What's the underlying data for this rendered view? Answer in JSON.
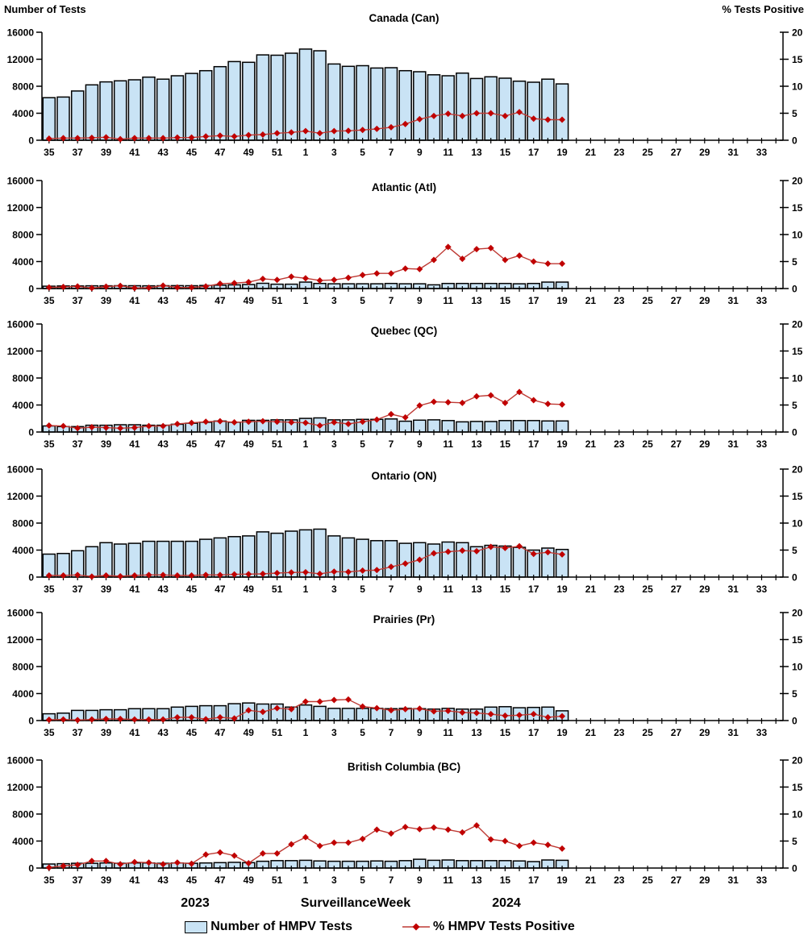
{
  "page": {
    "left_axis_title": "Number of Tests",
    "right_axis_title": "% Tests Positive",
    "x_axis_title": "Surveillance Week",
    "year_left": "2023",
    "year_right": "2024",
    "legend": {
      "bars": "Number of HMPV Tests",
      "line": "% HMPV Tests Positive"
    }
  },
  "axis": {
    "week_labels": [
      "35",
      "37",
      "39",
      "41",
      "43",
      "45",
      "47",
      "49",
      "51",
      "1",
      "3",
      "5",
      "7",
      "9",
      "11",
      "13",
      "15",
      "17",
      "19",
      "21",
      "23",
      "25",
      "27",
      "29",
      "31",
      "33"
    ],
    "weeks_total": 52,
    "left_ticks": [
      0,
      4000,
      8000,
      12000,
      16000
    ],
    "right_ticks": [
      0,
      5,
      10,
      15,
      20
    ]
  },
  "colors": {
    "bar_fill": "#C9E3F5",
    "bar_stroke": "#000000",
    "line": "#BE3A34",
    "marker": "#C00000",
    "axis": "#000000"
  },
  "chart_data": [
    {
      "type": "bar",
      "title": "Canada (Can)",
      "xlabel": "Surveillance Week",
      "ylabel_left": "Number of Tests",
      "ylabel_right": "% Tests Positive",
      "ylim_left": [
        0,
        16000
      ],
      "ylim_right": [
        0,
        20
      ],
      "weeks": [
        35,
        36,
        37,
        38,
        39,
        40,
        41,
        42,
        43,
        44,
        45,
        46,
        47,
        48,
        49,
        50,
        51,
        52,
        1,
        2,
        3,
        4,
        5,
        6,
        7,
        8,
        9,
        10,
        11,
        12,
        13,
        14,
        15,
        16,
        17,
        18,
        19
      ],
      "series": [
        {
          "name": "Number of HMPV Tests",
          "type": "bar",
          "axis": "left",
          "values": [
            6300,
            6400,
            7300,
            8200,
            8650,
            8800,
            8950,
            9350,
            9050,
            9550,
            9900,
            10300,
            10900,
            11650,
            11550,
            12650,
            12600,
            12900,
            13500,
            13250,
            11300,
            10950,
            11050,
            10700,
            10750,
            10300,
            10150,
            9700,
            9550,
            9950,
            9150,
            9400,
            9200,
            8750,
            8600,
            9050,
            8350
          ]
        },
        {
          "name": "% HMPV Tests Positive",
          "type": "line",
          "axis": "right",
          "values": [
            0.3,
            0.4,
            0.4,
            0.45,
            0.55,
            0.2,
            0.4,
            0.4,
            0.4,
            0.5,
            0.5,
            0.7,
            0.85,
            0.7,
            0.95,
            1.05,
            1.3,
            1.45,
            1.7,
            1.3,
            1.7,
            1.75,
            1.9,
            2.1,
            2.4,
            3.0,
            3.9,
            4.5,
            4.9,
            4.5,
            5.0,
            5.0,
            4.5,
            5.2,
            4.0,
            3.8,
            3.8
          ]
        }
      ]
    },
    {
      "type": "bar",
      "title": "Atlantic (Atl)",
      "xlabel": "Surveillance Week",
      "ylabel_left": "Number of Tests",
      "ylabel_right": "% Tests Positive",
      "ylim_left": [
        0,
        16000
      ],
      "ylim_right": [
        0,
        20
      ],
      "weeks": [
        35,
        36,
        37,
        38,
        39,
        40,
        41,
        42,
        43,
        44,
        45,
        46,
        47,
        48,
        49,
        50,
        51,
        52,
        1,
        2,
        3,
        4,
        5,
        6,
        7,
        8,
        9,
        10,
        11,
        12,
        13,
        14,
        15,
        16,
        17,
        18,
        19
      ],
      "series": [
        {
          "name": "Number of HMPV Tests",
          "type": "bar",
          "axis": "left",
          "values": [
            350,
            380,
            380,
            400,
            400,
            420,
            420,
            400,
            420,
            430,
            420,
            450,
            500,
            550,
            600,
            780,
            650,
            650,
            950,
            750,
            700,
            700,
            700,
            700,
            750,
            700,
            700,
            550,
            750,
            750,
            750,
            750,
            750,
            700,
            750,
            950,
            950
          ]
        },
        {
          "name": "% HMPV Tests Positive",
          "type": "line",
          "axis": "right",
          "values": [
            0.2,
            0.3,
            0.4,
            0.1,
            0.35,
            0.5,
            0.1,
            0.15,
            0.55,
            0.2,
            0.2,
            0.4,
            0.9,
            1.0,
            1.2,
            1.8,
            1.6,
            2.2,
            1.9,
            1.5,
            1.6,
            2.0,
            2.5,
            2.8,
            2.8,
            3.7,
            3.6,
            5.3,
            7.7,
            5.5,
            7.3,
            7.5,
            5.3,
            6.1,
            5.0,
            4.6,
            4.6
          ]
        }
      ]
    },
    {
      "type": "bar",
      "title": "Quebec (QC)",
      "xlabel": "Surveillance Week",
      "ylabel_left": "Number of Tests",
      "ylabel_right": "% Tests Positive",
      "ylim_left": [
        0,
        16000
      ],
      "ylim_right": [
        0,
        20
      ],
      "weeks": [
        35,
        36,
        37,
        38,
        39,
        40,
        41,
        42,
        43,
        44,
        45,
        46,
        47,
        48,
        49,
        50,
        51,
        52,
        1,
        2,
        3,
        4,
        5,
        6,
        7,
        8,
        9,
        10,
        11,
        12,
        13,
        14,
        15,
        16,
        17,
        18,
        19
      ],
      "series": [
        {
          "name": "Number of HMPV Tests",
          "type": "bar",
          "axis": "left",
          "values": [
            900,
            800,
            800,
            1000,
            1000,
            1080,
            1080,
            1000,
            1000,
            1150,
            1300,
            1450,
            1620,
            1450,
            1730,
            1730,
            1800,
            1800,
            2020,
            2090,
            1800,
            1800,
            1870,
            1870,
            1940,
            1600,
            1750,
            1800,
            1700,
            1500,
            1560,
            1550,
            1700,
            1700,
            1700,
            1640,
            1640
          ]
        },
        {
          "name": "% HMPV Tests Positive",
          "type": "line",
          "axis": "right",
          "values": [
            1.2,
            1.1,
            0.7,
            0.9,
            0.8,
            0.7,
            0.8,
            1.1,
            1.1,
            1.5,
            1.7,
            1.9,
            2.0,
            1.8,
            1.9,
            2.0,
            1.9,
            1.8,
            1.7,
            1.2,
            1.8,
            1.5,
            1.9,
            2.3,
            3.3,
            2.7,
            4.9,
            5.6,
            5.5,
            5.4,
            6.6,
            6.8,
            5.4,
            7.4,
            5.9,
            5.2,
            5.1
          ]
        }
      ]
    },
    {
      "type": "bar",
      "title": "Ontario (ON)",
      "xlabel": "Surveillance Week",
      "ylabel_left": "Number of Tests",
      "ylabel_right": "% Tests Positive",
      "ylim_left": [
        0,
        16000
      ],
      "ylim_right": [
        0,
        20
      ],
      "weeks": [
        35,
        36,
        37,
        38,
        39,
        40,
        41,
        42,
        43,
        44,
        45,
        46,
        47,
        48,
        49,
        50,
        51,
        52,
        1,
        2,
        3,
        4,
        5,
        6,
        7,
        8,
        9,
        10,
        11,
        12,
        13,
        14,
        15,
        16,
        17,
        18,
        19
      ],
      "series": [
        {
          "name": "Number of HMPV Tests",
          "type": "bar",
          "axis": "left",
          "values": [
            3400,
            3500,
            3900,
            4500,
            5100,
            4900,
            5000,
            5300,
            5300,
            5300,
            5300,
            5600,
            5800,
            6000,
            6100,
            6700,
            6500,
            6800,
            7000,
            7100,
            6100,
            5800,
            5600,
            5400,
            5400,
            5000,
            5100,
            4900,
            5200,
            5100,
            4500,
            4700,
            4600,
            4400,
            4000,
            4300,
            4100
          ]
        },
        {
          "name": "% HMPV Tests Positive",
          "type": "line",
          "axis": "right",
          "values": [
            0.3,
            0.3,
            0.4,
            0.1,
            0.3,
            0.15,
            0.3,
            0.4,
            0.4,
            0.3,
            0.3,
            0.4,
            0.4,
            0.5,
            0.55,
            0.6,
            0.75,
            0.85,
            0.9,
            0.6,
            1.0,
            0.95,
            1.2,
            1.3,
            1.9,
            2.5,
            3.2,
            4.4,
            4.7,
            4.9,
            4.8,
            5.6,
            5.4,
            5.7,
            4.3,
            4.6,
            4.2
          ]
        }
      ]
    },
    {
      "type": "bar",
      "title": "Prairies (Pr)",
      "xlabel": "Surveillance Week",
      "ylabel_left": "Number of Tests",
      "ylabel_right": "% Tests Positive",
      "ylim_left": [
        0,
        16000
      ],
      "ylim_right": [
        0,
        20
      ],
      "weeks": [
        35,
        36,
        37,
        38,
        39,
        40,
        41,
        42,
        43,
        44,
        45,
        46,
        47,
        48,
        49,
        50,
        51,
        52,
        1,
        2,
        3,
        4,
        5,
        6,
        7,
        8,
        9,
        10,
        11,
        12,
        13,
        14,
        15,
        16,
        17,
        18,
        19
      ],
      "series": [
        {
          "name": "Number of HMPV Tests",
          "type": "bar",
          "axis": "left",
          "values": [
            1000,
            1100,
            1500,
            1500,
            1600,
            1600,
            1750,
            1750,
            1750,
            2000,
            2100,
            2200,
            2200,
            2500,
            2600,
            2450,
            2450,
            2000,
            2300,
            2100,
            1800,
            1800,
            1800,
            1800,
            1750,
            1800,
            1750,
            1700,
            1800,
            1700,
            1700,
            2000,
            2050,
            1900,
            1950,
            2000,
            1450
          ]
        },
        {
          "name": "% HMPV Tests Positive",
          "type": "line",
          "axis": "right",
          "values": [
            0.15,
            0.2,
            0.1,
            0.2,
            0.3,
            0.3,
            0.2,
            0.2,
            0.2,
            0.6,
            0.6,
            0.25,
            0.6,
            0.4,
            1.9,
            1.6,
            2.3,
            2.1,
            3.5,
            3.5,
            3.8,
            3.9,
            2.6,
            2.3,
            1.9,
            2.1,
            2.2,
            1.7,
            1.8,
            1.5,
            1.4,
            1.2,
            0.9,
            1.0,
            1.2,
            0.6,
            0.8
          ]
        }
      ]
    },
    {
      "type": "bar",
      "title": "British Columbia (BC)",
      "xlabel": "Surveillance Week",
      "ylabel_left": "Number of Tests",
      "ylabel_right": "% Tests Positive",
      "ylim_left": [
        0,
        16000
      ],
      "ylim_right": [
        0,
        20
      ],
      "weeks": [
        35,
        36,
        37,
        38,
        39,
        40,
        41,
        42,
        43,
        44,
        45,
        46,
        47,
        48,
        49,
        50,
        51,
        52,
        1,
        2,
        3,
        4,
        5,
        6,
        7,
        8,
        9,
        10,
        11,
        12,
        13,
        14,
        15,
        16,
        17,
        18,
        19
      ],
      "series": [
        {
          "name": "Number of HMPV Tests",
          "type": "bar",
          "axis": "left",
          "values": [
            600,
            650,
            700,
            700,
            750,
            700,
            750,
            750,
            700,
            750,
            700,
            750,
            800,
            850,
            800,
            1000,
            1100,
            1100,
            1150,
            1050,
            1000,
            1000,
            1000,
            1050,
            1000,
            1100,
            1300,
            1150,
            1200,
            1100,
            1100,
            1100,
            1100,
            1050,
            950,
            1200,
            1150
          ]
        },
        {
          "name": "% HMPV Tests Positive",
          "type": "line",
          "axis": "right",
          "values": [
            0.1,
            0.4,
            0.6,
            1.3,
            1.3,
            0.7,
            1.1,
            1.0,
            0.7,
            1.0,
            0.8,
            2.5,
            2.9,
            2.3,
            0.9,
            2.7,
            2.7,
            4.4,
            5.7,
            4.1,
            4.7,
            4.7,
            5.4,
            7.1,
            6.4,
            7.6,
            7.2,
            7.5,
            7.1,
            6.6,
            7.9,
            5.3,
            5.0,
            4.1,
            4.7,
            4.3,
            3.6
          ]
        }
      ]
    }
  ]
}
